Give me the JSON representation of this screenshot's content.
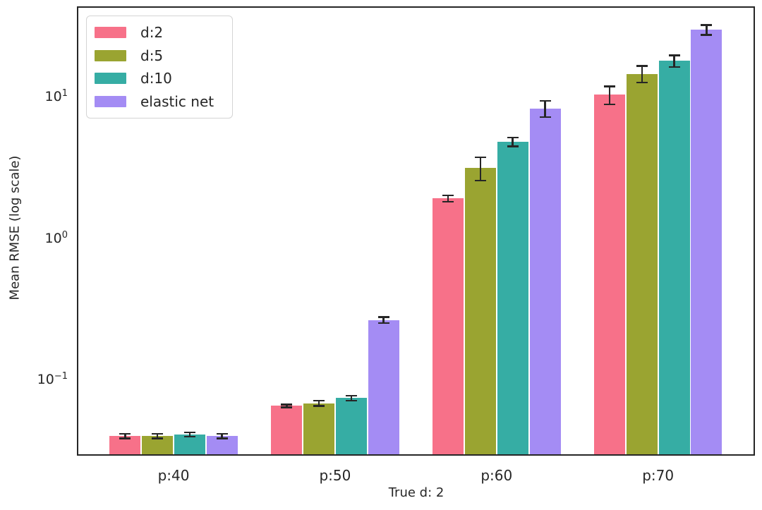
{
  "chart_data": {
    "type": "bar",
    "title": "",
    "xlabel": "True d: 2",
    "ylabel": "Mean RMSE (log scale)",
    "y_scale": "log",
    "grid": false,
    "legend_position": "upper left",
    "categories": [
      "p:40",
      "p:50",
      "p:60",
      "p:70"
    ],
    "series": [
      {
        "name": "d:2",
        "color": "#f77189",
        "values": [
          0.041,
          0.067,
          1.95,
          10.5
        ],
        "errors": [
          0.0015,
          0.0015,
          0.1,
          1.5
        ]
      },
      {
        "name": "d:5",
        "color": "#9aa431",
        "values": [
          0.041,
          0.07,
          3.2,
          14.8
        ],
        "errors": [
          0.0015,
          0.003,
          0.6,
          2.0
        ]
      },
      {
        "name": "d:10",
        "color": "#36ada4",
        "values": [
          0.042,
          0.076,
          4.9,
          18.2
        ],
        "errors": [
          0.0015,
          0.003,
          0.35,
          1.7
        ]
      },
      {
        "name": "elastic net",
        "color": "#a48cf4",
        "values": [
          0.041,
          0.27,
          8.4,
          30.2
        ],
        "errors": [
          0.0015,
          0.013,
          1.1,
          2.4
        ]
      }
    ],
    "ylim": [
      0.0298,
      43.7
    ],
    "y_ticks": [
      {
        "base": "10",
        "exp": "1",
        "value": 10
      },
      {
        "base": "10",
        "exp": "0",
        "value": 1
      },
      {
        "base": "10",
        "exp": "−1",
        "value": 0.1
      }
    ],
    "error_bar_color": "#262626",
    "axis_color": "#262626"
  }
}
